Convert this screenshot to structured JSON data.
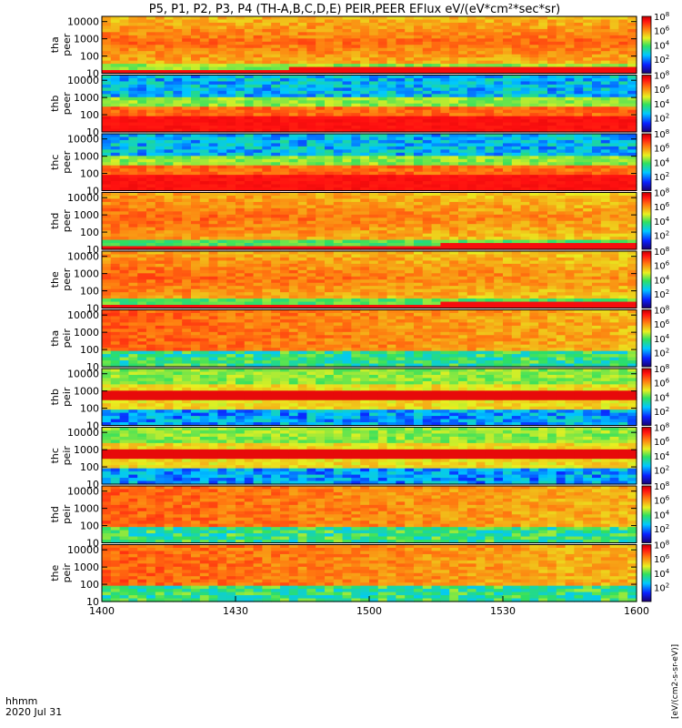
{
  "title": "P5, P1, P2, P3, P4 (TH-A,B,C,D,E) PEIR,PEER EFlux eV/(eV*cm²*sec*sr)",
  "time_axis": {
    "label_line1": "hhmm",
    "label_line2": "2020 Jul 31",
    "ticks": [
      "1400",
      "1430",
      "1500",
      "1530",
      "1600"
    ]
  },
  "colorbar": {
    "ticks_exponent": [
      "8",
      "6",
      "4",
      "2"
    ],
    "tick_base": "10",
    "unit_text": "[eV/(cm2-s-sr-eV)]"
  },
  "chart_data": {
    "type": "heatmap",
    "x": [
      "1400",
      "1430",
      "1500",
      "1530",
      "1600"
    ],
    "xlabel": "hhmm",
    "ylabel_units": "eV",
    "yscale": "log",
    "ylim": [
      10,
      20000
    ],
    "colorbar_range": [
      1,
      100000000
    ],
    "colorbar_scale": "log",
    "panels": [
      {
        "name": "tha peer",
        "yticks": [
          "10000",
          "1000",
          "100",
          "10"
        ]
      },
      {
        "name": "thb peer",
        "yticks": [
          "10000",
          "1000",
          "100",
          "10"
        ]
      },
      {
        "name": "thc peer",
        "yticks": [
          "10000",
          "1000",
          "100",
          "10"
        ]
      },
      {
        "name": "thd peer",
        "yticks": [
          "10000",
          "1000",
          "100",
          "10"
        ]
      },
      {
        "name": "the peer",
        "yticks": [
          "10000",
          "1000",
          "100",
          "10"
        ]
      },
      {
        "name": "tha peir",
        "yticks": [
          "10000",
          "1000",
          "100",
          "10"
        ]
      },
      {
        "name": "thb peir",
        "yticks": [
          "10000",
          "1000",
          "100",
          "10"
        ]
      },
      {
        "name": "thc peir",
        "yticks": [
          "10000",
          "1000",
          "100",
          "10"
        ]
      },
      {
        "name": "thd peir",
        "yticks": [
          "10000",
          "1000",
          "100",
          "10"
        ]
      },
      {
        "name": "the peir",
        "yticks": [
          "10000",
          "1000",
          "100",
          "10"
        ]
      }
    ]
  }
}
